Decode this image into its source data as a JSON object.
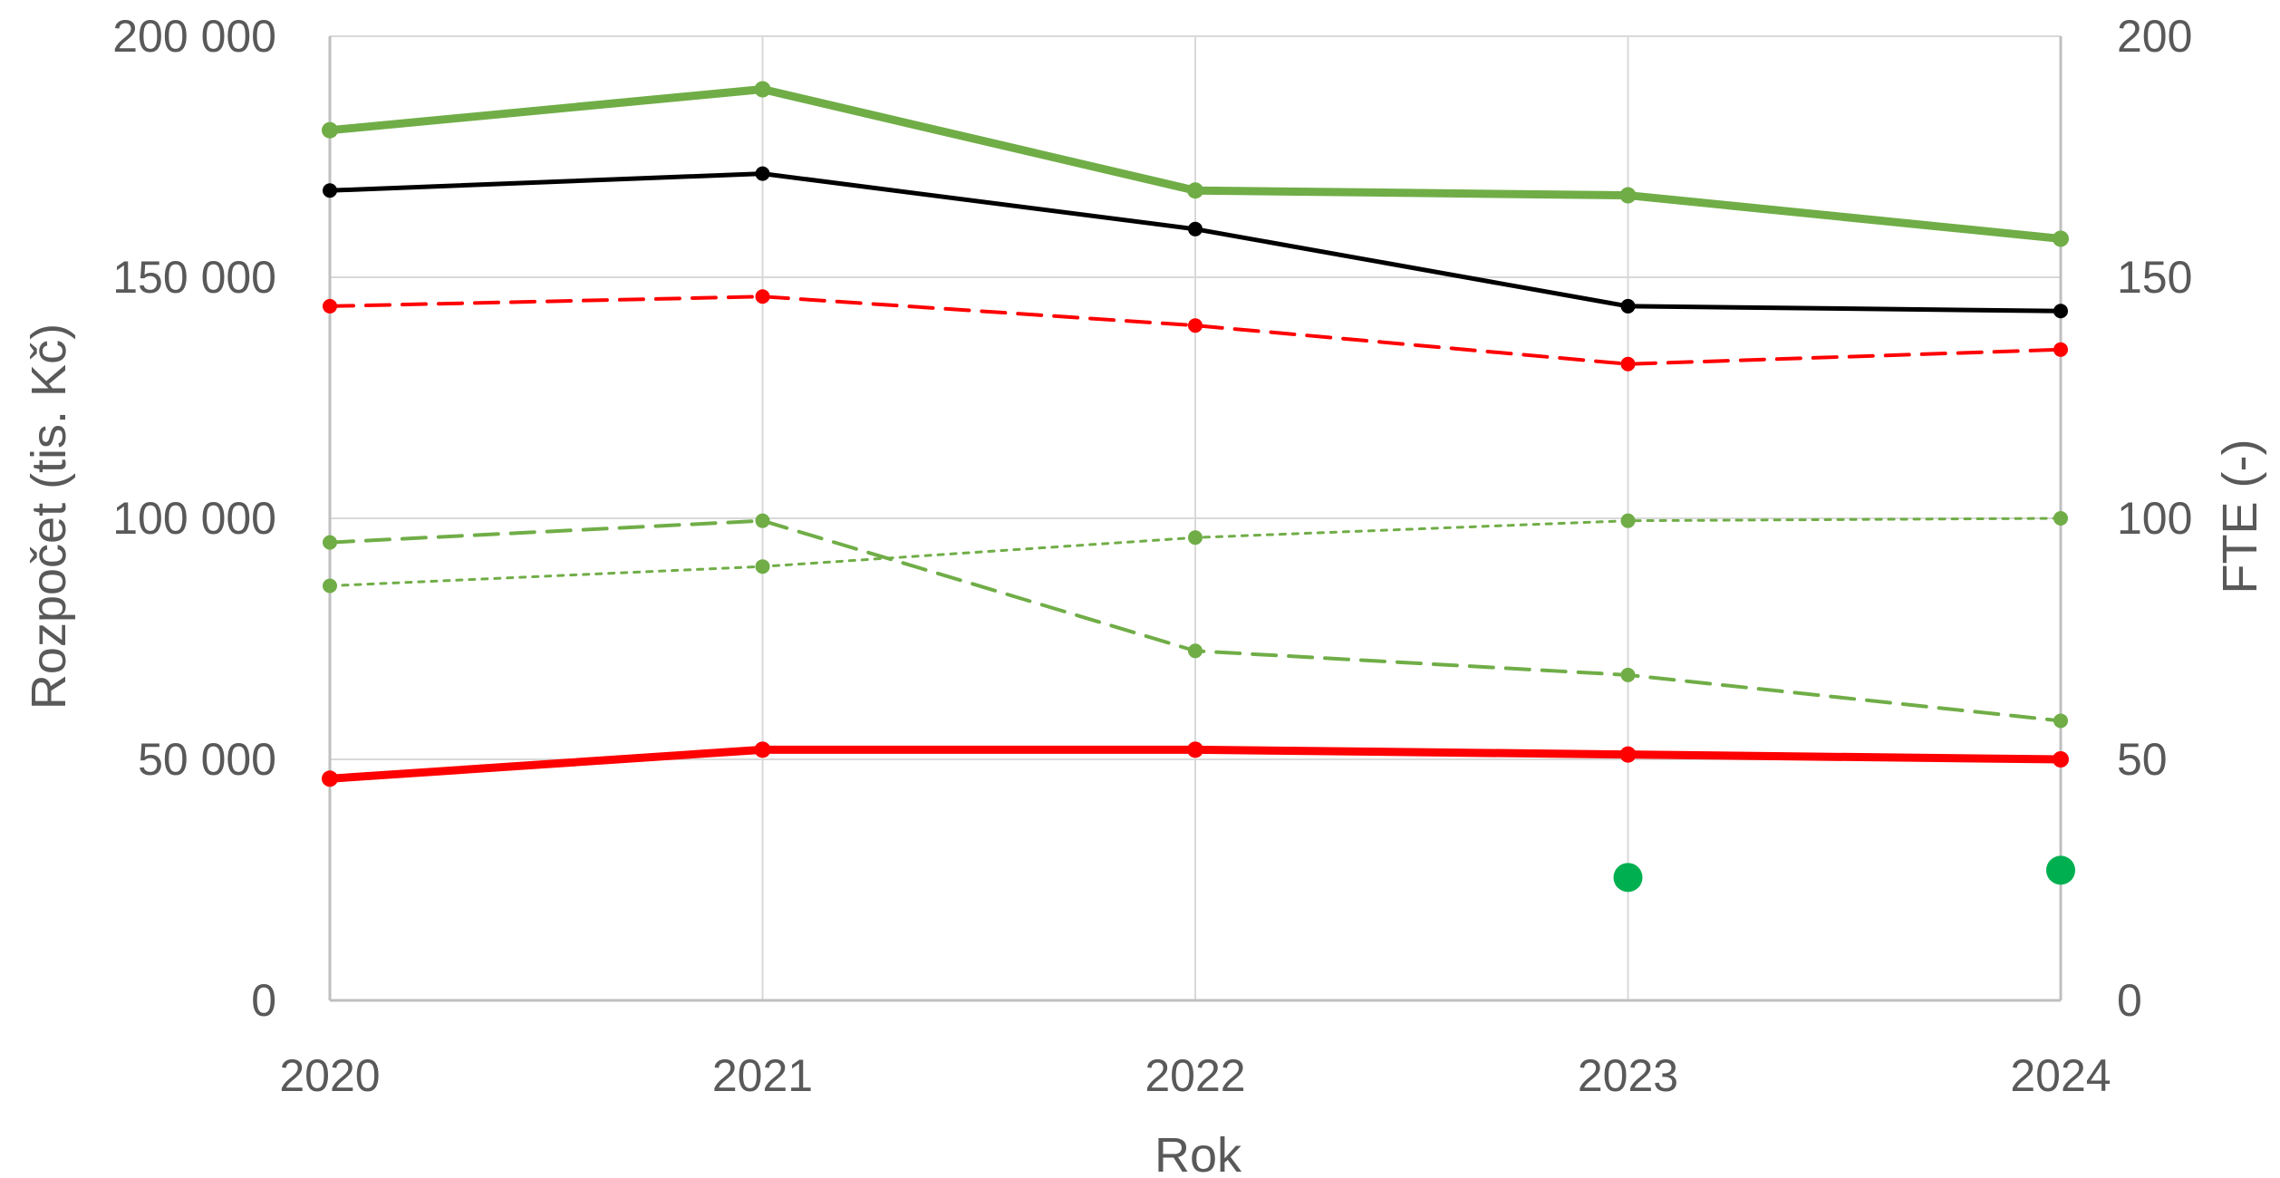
{
  "chart_data": {
    "type": "line",
    "categories": [
      "2020",
      "2021",
      "2022",
      "2023",
      "2024"
    ],
    "xlabel": "Rok",
    "ylabel": "Rozpočet (tis. Kč)",
    "y2label": "FTE (-)",
    "ylim": [
      0,
      200000
    ],
    "y2lim": [
      0,
      200
    ],
    "y_ticks": [
      "0",
      "50 000",
      "100 000",
      "150 000",
      "200 000"
    ],
    "y2_ticks": [
      "0",
      "50",
      "100",
      "150",
      "200"
    ],
    "grid": true,
    "legend": "none",
    "series": [
      {
        "axis": "left",
        "color": "#70AD47",
        "style": "solid",
        "width": 9,
        "marker": 9,
        "values": [
          180500,
          189000,
          168000,
          167000,
          158000
        ]
      },
      {
        "axis": "left",
        "color": "#000000",
        "style": "solid",
        "width": 5,
        "marker": 8,
        "values": [
          168000,
          171500,
          160000,
          144000,
          143000
        ]
      },
      {
        "axis": "left",
        "color": "#FF0000",
        "style": "dashed",
        "width": 4,
        "marker": 8,
        "values": [
          144000,
          146000,
          140000,
          132000,
          135000
        ]
      },
      {
        "axis": "left",
        "color": "#70AD47",
        "style": "dashed",
        "width": 4,
        "marker": 8,
        "values": [
          95000,
          99500,
          72500,
          67500,
          58000
        ]
      },
      {
        "axis": "left",
        "color": "#70AD47",
        "style": "dotted",
        "width": 3,
        "marker": 8,
        "values": [
          86000,
          90000,
          96000,
          99500,
          100000
        ]
      },
      {
        "axis": "right",
        "color": "#FF0000",
        "style": "solid",
        "width": 9,
        "marker": 9,
        "values": [
          46,
          52,
          52,
          51,
          50
        ]
      },
      {
        "axis": "right",
        "color": "#00B050",
        "style": "none",
        "width": 0,
        "marker": 16,
        "values": [
          null,
          null,
          null,
          25.5,
          27
        ]
      }
    ]
  }
}
